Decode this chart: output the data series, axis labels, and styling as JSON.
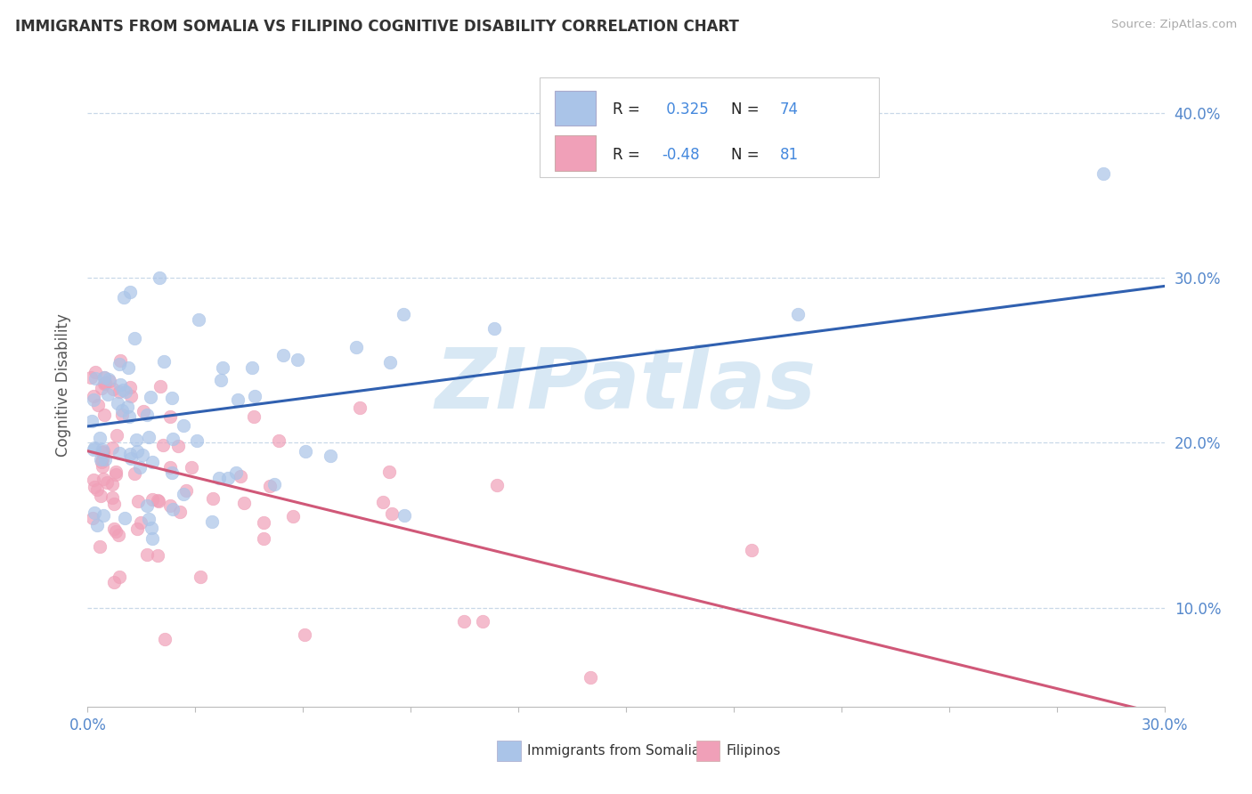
{
  "title": "IMMIGRANTS FROM SOMALIA VS FILIPINO COGNITIVE DISABILITY CORRELATION CHART",
  "source": "Source: ZipAtlas.com",
  "ylabel": "Cognitive Disability",
  "xlim": [
    0.0,
    0.3
  ],
  "ylim": [
    0.04,
    0.43
  ],
  "ytick_pos": [
    0.1,
    0.2,
    0.3,
    0.4
  ],
  "ytick_labels": [
    "10.0%",
    "20.0%",
    "30.0%",
    "40.0%"
  ],
  "somalia_R": 0.325,
  "somalia_N": 74,
  "filipino_R": -0.48,
  "filipino_N": 81,
  "somalia_color": "#aac4e8",
  "filipino_color": "#f0a0b8",
  "somalia_line_color": "#3060b0",
  "filipino_line_color": "#d05878",
  "somalia_trend_x0": 0.0,
  "somalia_trend_x1": 0.3,
  "somalia_trend_y0": 0.21,
  "somalia_trend_y1": 0.295,
  "filipino_trend_x0": 0.0,
  "filipino_trend_x1": 0.3,
  "filipino_trend_y0": 0.195,
  "filipino_trend_y1": 0.035,
  "watermark_text": "ZIPatlas",
  "watermark_color": "#d8e8f4",
  "grid_color": "#c8d8e8",
  "axis_color": "#5588cc",
  "background": "#ffffff",
  "legend_R_color": "#222222",
  "legend_val_color": "#4488dd"
}
